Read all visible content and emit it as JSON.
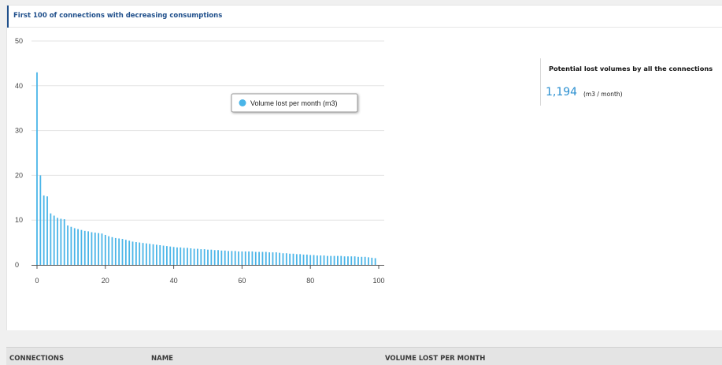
{
  "panel": {
    "title": "First 100 of connections with decreasing consumptions"
  },
  "kpi": {
    "label": "Potential lost volumes by all the connections",
    "value": "1,194",
    "unit": "(m3 / month)"
  },
  "table": {
    "columns": [
      "CONNECTIONS",
      "NAME",
      "VOLUME LOST PER MONTH"
    ]
  },
  "colors": {
    "bar": "#4ab5e8",
    "accent": "#1f4f8b",
    "kpi_value": "#2a8fd0"
  },
  "chart_data": {
    "type": "bar",
    "title": "",
    "xlabel": "",
    "ylabel": "",
    "xlim": [
      0,
      100
    ],
    "ylim": [
      0,
      50
    ],
    "x_ticks": [
      0,
      20,
      40,
      60,
      80,
      100
    ],
    "y_ticks": [
      0,
      10,
      20,
      30,
      40,
      50
    ],
    "grid": true,
    "legend": {
      "position": "top-right",
      "entries": [
        "Volume lost per month (m3)"
      ]
    },
    "series": [
      {
        "name": "Volume lost per month (m3)",
        "x": [
          0,
          1,
          2,
          3,
          4,
          5,
          6,
          7,
          8,
          9,
          10,
          11,
          12,
          13,
          14,
          15,
          16,
          17,
          18,
          19,
          20,
          21,
          22,
          23,
          24,
          25,
          26,
          27,
          28,
          29,
          30,
          31,
          32,
          33,
          34,
          35,
          36,
          37,
          38,
          39,
          40,
          41,
          42,
          43,
          44,
          45,
          46,
          47,
          48,
          49,
          50,
          51,
          52,
          53,
          54,
          55,
          56,
          57,
          58,
          59,
          60,
          61,
          62,
          63,
          64,
          65,
          66,
          67,
          68,
          69,
          70,
          71,
          72,
          73,
          74,
          75,
          76,
          77,
          78,
          79,
          80,
          81,
          82,
          83,
          84,
          85,
          86,
          87,
          88,
          89,
          90,
          91,
          92,
          93,
          94,
          95,
          96,
          97,
          98,
          99
        ],
        "values": [
          43,
          20,
          15.5,
          15.3,
          11.5,
          11,
          10.5,
          10.3,
          10.2,
          8.8,
          8.5,
          8.2,
          8,
          7.8,
          7.6,
          7.5,
          7.3,
          7.2,
          7.1,
          7,
          6.7,
          6.4,
          6.2,
          6,
          5.9,
          5.8,
          5.6,
          5.4,
          5.2,
          5.1,
          5,
          4.9,
          4.8,
          4.7,
          4.6,
          4.5,
          4.4,
          4.3,
          4.2,
          4.1,
          4,
          3.9,
          3.9,
          3.8,
          3.8,
          3.7,
          3.6,
          3.6,
          3.5,
          3.5,
          3.4,
          3.4,
          3.3,
          3.3,
          3.2,
          3.2,
          3.1,
          3.1,
          3.1,
          3,
          3,
          3,
          3,
          3,
          2.9,
          2.9,
          2.9,
          2.9,
          2.8,
          2.8,
          2.8,
          2.7,
          2.6,
          2.6,
          2.5,
          2.5,
          2.4,
          2.4,
          2.3,
          2.3,
          2.2,
          2.2,
          2.1,
          2.1,
          2.1,
          2,
          2,
          2,
          2,
          2,
          1.9,
          1.9,
          1.9,
          1.9,
          1.8,
          1.8,
          1.8,
          1.7,
          1.6,
          1.5
        ]
      }
    ]
  }
}
